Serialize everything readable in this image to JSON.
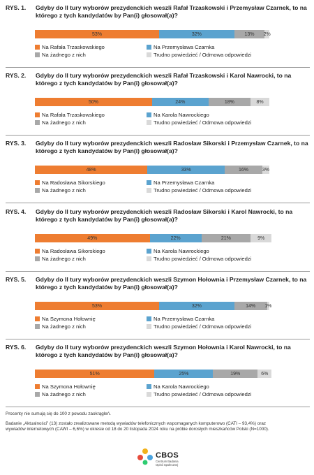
{
  "colors": {
    "Rafal_first": "#ee7d31",
    "second": "#5ba3cf",
    "none": "#a8a8a8",
    "hard": "#d9d9d9"
  },
  "chart_data": [
    {
      "type": "bar",
      "orientation": "horizontal-stacked",
      "number": "RYS. 1.",
      "title": "Gdyby do II tury wyborów prezydenckich weszli Rafał Trzaskowski i Przemysław Czarnek, to na którego z tych kandydatów by Pan(i) głosował(a)?",
      "series": [
        {
          "name": "Na Rafała Trzaskowskiego",
          "value": 53,
          "label": "53%",
          "color": "#ee7d31"
        },
        {
          "name": "Na Przemysława Czarnka",
          "value": 32,
          "label": "32%",
          "color": "#5ba3cf"
        },
        {
          "name": "Na żadnego z nich",
          "value": 13,
          "label": "13%",
          "color": "#a8a8a8"
        },
        {
          "name": "Trudno powiedzieć / Odmowa odpowiedzi",
          "value": 2,
          "label": "2%",
          "color": "#d9d9d9"
        }
      ]
    },
    {
      "type": "bar",
      "orientation": "horizontal-stacked",
      "number": "RYS. 2.",
      "title": "Gdyby do II tury wyborów prezydenckich weszli Rafał Trzaskowski i Karol Nawrocki, to na którego z tych kandydatów by Pan(i) głosował(a)?",
      "series": [
        {
          "name": "Na Rafała Trzaskowskiego",
          "value": 50,
          "label": "50%",
          "color": "#ee7d31"
        },
        {
          "name": "Na Karola Nawrockiego",
          "value": 24,
          "label": "24%",
          "color": "#5ba3cf"
        },
        {
          "name": "Na żadnego z nich",
          "value": 18,
          "label": "18%",
          "color": "#a8a8a8"
        },
        {
          "name": "Trudno powiedzieć / Odmowa odpowiedzi",
          "value": 8,
          "label": "8%",
          "color": "#d9d9d9"
        }
      ]
    },
    {
      "type": "bar",
      "orientation": "horizontal-stacked",
      "number": "RYS. 3.",
      "title": "Gdyby do II tury wyborów prezydenckich weszli Radosław Sikorski i Przemysław Czarnek, to na którego z tych kandydatów by Pan(i) głosował(a)?",
      "series": [
        {
          "name": "Na Radosława Sikorskiego",
          "value": 48,
          "label": "48%",
          "color": "#ee7d31"
        },
        {
          "name": "Na Przemysława Czarnka",
          "value": 33,
          "label": "33%",
          "color": "#5ba3cf"
        },
        {
          "name": "Na żadnego z nich",
          "value": 16,
          "label": "16%",
          "color": "#a8a8a8"
        },
        {
          "name": "Trudno powiedzieć / Odmowa odpowiedzi",
          "value": 3,
          "label": "3%",
          "color": "#d9d9d9"
        }
      ]
    },
    {
      "type": "bar",
      "orientation": "horizontal-stacked",
      "number": "RYS. 4.",
      "title": "Gdyby do II tury wyborów prezydenckich weszli Radosław Sikorski i Karol Nawrocki, to na którego z tych kandydatów by Pan(i) głosował(a)?",
      "series": [
        {
          "name": "Na Radosława Sikorskiego",
          "value": 49,
          "label": "49%",
          "color": "#ee7d31"
        },
        {
          "name": "Na Karola Nawrockiego",
          "value": 22,
          "label": "22%",
          "color": "#5ba3cf"
        },
        {
          "name": "Na żadnego z nich",
          "value": 21,
          "label": "21%",
          "color": "#a8a8a8"
        },
        {
          "name": "Trudno powiedzieć / Odmowa odpowiedzi",
          "value": 9,
          "label": "9%",
          "color": "#d9d9d9"
        }
      ]
    },
    {
      "type": "bar",
      "orientation": "horizontal-stacked",
      "number": "RYS. 5.",
      "title": "Gdyby do II tury wyborów prezydenckich weszli Szymon Hołownia i Przemysław Czarnek, to na którego z tych kandydatów by Pan(i) głosował(a)?",
      "series": [
        {
          "name": "Na Szymona Hołownię",
          "value": 53,
          "label": "53%",
          "color": "#ee7d31"
        },
        {
          "name": "Na Przemysława Czarnka",
          "value": 32,
          "label": "32%",
          "color": "#5ba3cf"
        },
        {
          "name": "Na żadnego z nich",
          "value": 14,
          "label": "14%",
          "color": "#a8a8a8"
        },
        {
          "name": "Trudno powiedzieć / Odmowa odpowiedzi",
          "value": 1,
          "label": "1%",
          "color": "#d9d9d9"
        }
      ]
    },
    {
      "type": "bar",
      "orientation": "horizontal-stacked",
      "number": "RYS. 6.",
      "title": "Gdyby do II tury wyborów prezydenckich weszli Szymon Hołownia i Karol Nawrocki, to na którego z tych kandydatów by Pan(i) głosował(a)?",
      "series": [
        {
          "name": "Na Szymona Hołownię",
          "value": 51,
          "label": "51%",
          "color": "#ee7d31"
        },
        {
          "name": "Na Karola Nawrockiego",
          "value": 25,
          "label": "25%",
          "color": "#5ba3cf"
        },
        {
          "name": "Na żadnego z nich",
          "value": 19,
          "label": "19%",
          "color": "#a8a8a8"
        },
        {
          "name": "Trudno powiedzieć / Odmowa odpowiedzi",
          "value": 6,
          "label": "6%",
          "color": "#d9d9d9"
        }
      ]
    }
  ],
  "footnotes": {
    "rounding": "Procenty nie sumują się do 100 z powodu zaokrągleń.",
    "methodology": "Badanie „Aktualności” (13) zostało zrealizowane metodą wywiadów telefonicznych wspomaganych komputerowo (CATI – 93,4%) oraz wywiadów internetowych (CAWI – 6,6%) w okresie od 18 do 20 listopada 2024 roku na próbie dorosłych mieszkańców Polski (N=1000)."
  },
  "logo": {
    "name": "CBOS",
    "subtitle": "Centrum Badania Opinii Społecznej"
  }
}
